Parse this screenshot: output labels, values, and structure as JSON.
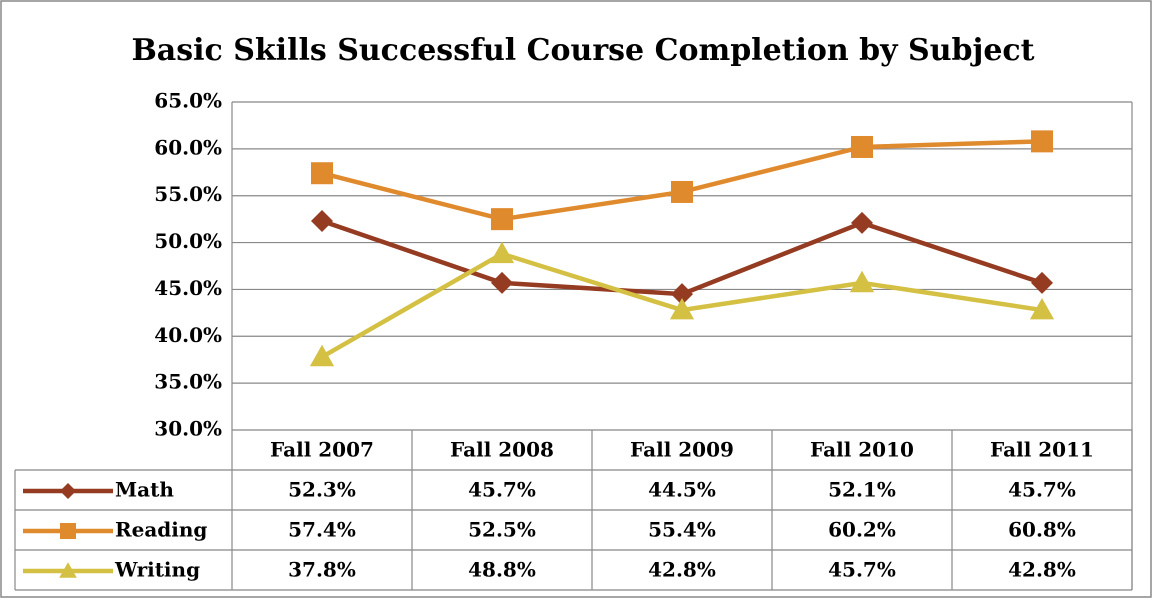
{
  "chart_data": {
    "type": "line",
    "title": "Basic Skills Successful Course Completion by Subject",
    "categories": [
      "Fall 2007",
      "Fall 2008",
      "Fall 2009",
      "Fall 2010",
      "Fall 2011"
    ],
    "series": [
      {
        "name": "Math",
        "color": "#943b22",
        "marker": "diamond",
        "values": [
          52.3,
          45.7,
          44.5,
          52.1,
          45.7
        ],
        "value_labels": [
          "52.3%",
          "45.7%",
          "44.5%",
          "52.1%",
          "45.7%"
        ]
      },
      {
        "name": "Reading",
        "color": "#e08a2e",
        "marker": "square",
        "values": [
          57.4,
          52.5,
          55.4,
          60.2,
          60.8
        ],
        "value_labels": [
          "57.4%",
          "52.5%",
          "55.4%",
          "60.2%",
          "60.8%"
        ]
      },
      {
        "name": "Writing",
        "color": "#d4c042",
        "marker": "triangle",
        "values": [
          37.8,
          48.8,
          42.8,
          45.7,
          42.8
        ],
        "value_labels": [
          "37.8%",
          "48.8%",
          "42.8%",
          "45.7%",
          "42.8%"
        ]
      }
    ],
    "ylim": [
      30,
      65
    ],
    "yticks": [
      {
        "value": 30,
        "label": "30.0%"
      },
      {
        "value": 35,
        "label": "35.0%"
      },
      {
        "value": 40,
        "label": "40.0%"
      },
      {
        "value": 45,
        "label": "45.0%"
      },
      {
        "value": 50,
        "label": "50.0%"
      },
      {
        "value": 55,
        "label": "55.0%"
      },
      {
        "value": 60,
        "label": "60.0%"
      },
      {
        "value": 65,
        "label": "65.0%"
      }
    ],
    "grid": true
  }
}
